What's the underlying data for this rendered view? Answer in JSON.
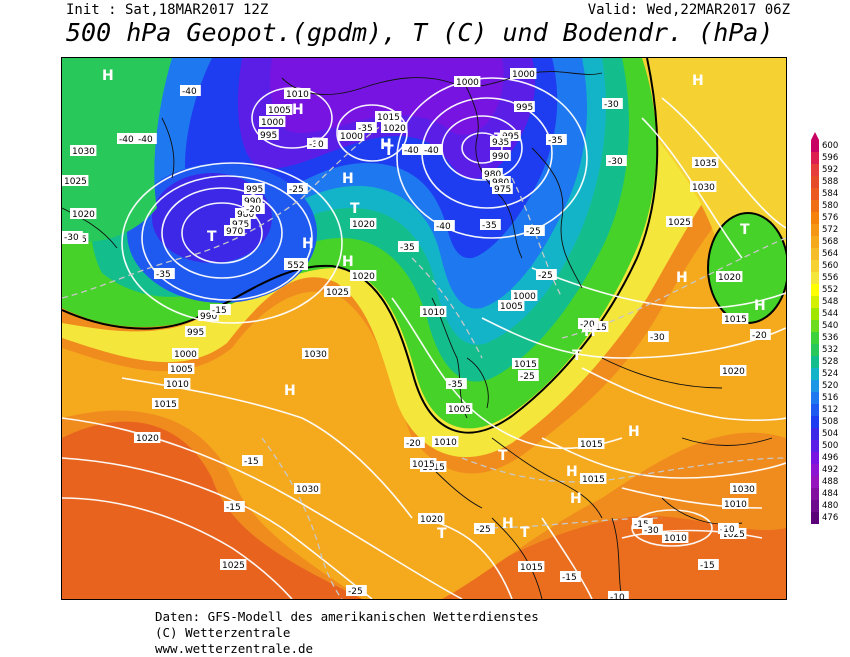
{
  "header": {
    "init": "Init : Sat,18MAR2017 12Z",
    "valid": "Valid: Wed,22MAR2017 06Z",
    "title": "500 hPa Geopot.(gpdm), T (C) und Bodendr. (hPa)"
  },
  "legend": {
    "values": [
      "600",
      "596",
      "592",
      "588",
      "584",
      "580",
      "576",
      "572",
      "568",
      "564",
      "560",
      "556",
      "552",
      "548",
      "544",
      "540",
      "536",
      "532",
      "528",
      "524",
      "520",
      "516",
      "512",
      "508",
      "504",
      "500",
      "496",
      "492",
      "488",
      "484",
      "480",
      "476"
    ],
    "colors": [
      "#c80064",
      "#dc1e50",
      "#e63c3c",
      "#e64b28",
      "#eb5a1e",
      "#f06e14",
      "#f5820a",
      "#f59614",
      "#f5aa1e",
      "#f5be28",
      "#f5d232",
      "#f5e63c",
      "#ffff00",
      "#d2f000",
      "#a0e600",
      "#6edc1e",
      "#3cd23c",
      "#28c85a",
      "#14be8c",
      "#14b4c8",
      "#1e96e6",
      "#1e78f0",
      "#1e5af0",
      "#1e3cf0",
      "#3c28e6",
      "#5a1ee6",
      "#7814e1",
      "#8c14d2",
      "#9614be",
      "#820fa0",
      "#6e0a8c",
      "#5a0078"
    ]
  },
  "map": {
    "pressure_labels": [
      "1000",
      "1010",
      "1005",
      "1000",
      "995",
      "1015",
      "1020",
      "1000",
      "995",
      "1000",
      "1030",
      "1025",
      "1020",
      "1015",
      "995",
      "990",
      "980",
      "975",
      "970",
      "1020",
      "1020",
      "1025",
      "990",
      "995",
      "1000",
      "1005",
      "1010",
      "1015",
      "1020",
      "1030",
      "1030",
      "1025",
      "1015",
      "1010",
      "1005",
      "1015",
      "1010",
      "1015",
      "1015",
      "1020",
      "1025",
      "1030",
      "1035",
      "1030",
      "1025",
      "1020",
      "1015",
      "1020",
      "1015",
      "1010",
      "1010",
      "1015",
      "1000",
      "995",
      "980",
      "985",
      "990",
      "980",
      "975",
      "1015",
      "1005"
    ],
    "temp_labels": [
      "-40",
      "-40",
      "-40",
      "-35",
      "-30",
      "-25",
      "-20",
      "-15",
      "-15",
      "-40",
      "-35",
      "-30",
      "-35",
      "-40",
      "-40",
      "-35",
      "-30",
      "-30",
      "-35",
      "-25",
      "-20",
      "-35",
      "-25",
      "-20",
      "-15",
      "-25",
      "-15",
      "-30",
      "-15",
      "-10",
      "-15",
      "-10",
      "-25",
      "-30",
      "-25",
      "-20"
    ],
    "highs": [
      "H",
      "H",
      "H",
      "H",
      "H",
      "H",
      "H",
      "H",
      "H",
      "H",
      "H",
      "H",
      "H",
      "H",
      "H"
    ],
    "lows": [
      "T",
      "T",
      "T",
      "T",
      "T",
      "T",
      "T",
      "T",
      "T",
      "T",
      "T"
    ],
    "geopot_label": "552"
  },
  "footer": {
    "line1": "Daten: GFS-Modell des amerikanischen Wetterdienstes",
    "line2": "(C) Wetterzentrale",
    "line3": "www.wetterzentrale.de"
  }
}
